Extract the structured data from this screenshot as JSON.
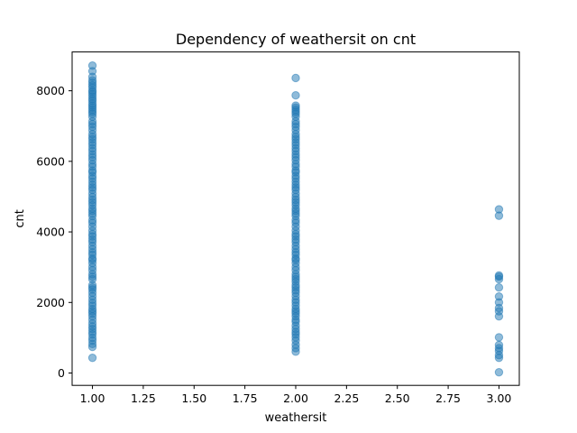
{
  "chart_data": {
    "type": "scatter",
    "title": "Dependency of weathersit on cnt",
    "xlabel": "weathersit",
    "ylabel": "cnt",
    "xlim": [
      0.9,
      3.1
    ],
    "ylim": [
      -350,
      9100
    ],
    "xticks": [
      1.0,
      1.25,
      1.5,
      1.75,
      2.0,
      2.25,
      2.5,
      2.75,
      3.0
    ],
    "xtick_labels": [
      "1.00",
      "1.25",
      "1.50",
      "1.75",
      "2.00",
      "2.25",
      "2.50",
      "2.75",
      "3.00"
    ],
    "yticks": [
      0,
      2000,
      4000,
      6000,
      8000
    ],
    "ytick_labels": [
      "0",
      "2000",
      "4000",
      "6000",
      "8000"
    ],
    "grid": false,
    "marker_color": "#1f77b4",
    "marker_alpha": 0.5,
    "series": [
      {
        "x": 1.0,
        "values": [
          431,
          741,
          822,
          920,
          1000,
          1096,
          1167,
          1248,
          1321,
          1406,
          1510,
          1606,
          1685,
          1749,
          1815,
          1907,
          1985,
          2077,
          2177,
          2277,
          2368,
          2425,
          2493,
          2660,
          2729,
          2802,
          2914,
          3005,
          3115,
          3204,
          3249,
          3351,
          3422,
          3510,
          3606,
          3710,
          3784,
          3872,
          3940,
          4036,
          4150,
          4258,
          4333,
          4451,
          4521,
          4595,
          4660,
          4758,
          4836,
          4906,
          4990,
          5084,
          5191,
          5260,
          5336,
          5423,
          5512,
          5588,
          5687,
          5740,
          5847,
          5923,
          6031,
          6118,
          6196,
          6290,
          6370,
          6460,
          6536,
          6624,
          6691,
          6770,
          6883,
          6978,
          7055,
          7134,
          7264,
          7347,
          7405,
          7460,
          7525,
          7580,
          7639,
          7713,
          7767,
          7836,
          7903,
          7965,
          8009,
          8090,
          8156,
          8227,
          8294,
          8395,
          8555,
          8714
        ]
      },
      {
        "x": 2.0,
        "values": [
          605,
          705,
          801,
          920,
          1013,
          1096,
          1162,
          1248,
          1341,
          1450,
          1510,
          1607,
          1685,
          1749,
          1817,
          1910,
          2002,
          2077,
          2177,
          2277,
          2346,
          2425,
          2493,
          2587,
          2660,
          2729,
          2802,
          2914,
          3005,
          3115,
          3204,
          3249,
          3351,
          3422,
          3510,
          3606,
          3710,
          3784,
          3872,
          3940,
          4036,
          4150,
          4258,
          4333,
          4451,
          4521,
          4595,
          4660,
          4758,
          4836,
          4906,
          4990,
          5084,
          5191,
          5260,
          5336,
          5423,
          5512,
          5588,
          5687,
          5740,
          5847,
          5923,
          6031,
          6118,
          6196,
          6290,
          6370,
          6460,
          6536,
          6624,
          6691,
          6770,
          6883,
          6978,
          7055,
          7134,
          7264,
          7347,
          7405,
          7460,
          7525,
          7580,
          7870,
          8362
        ]
      },
      {
        "x": 3.0,
        "values": [
          22,
          431,
          506,
          627,
          705,
          795,
          1013,
          1607,
          1749,
          1842,
          2002,
          2169,
          2424,
          2660,
          2729,
          2765,
          4459,
          4639
        ]
      }
    ]
  }
}
